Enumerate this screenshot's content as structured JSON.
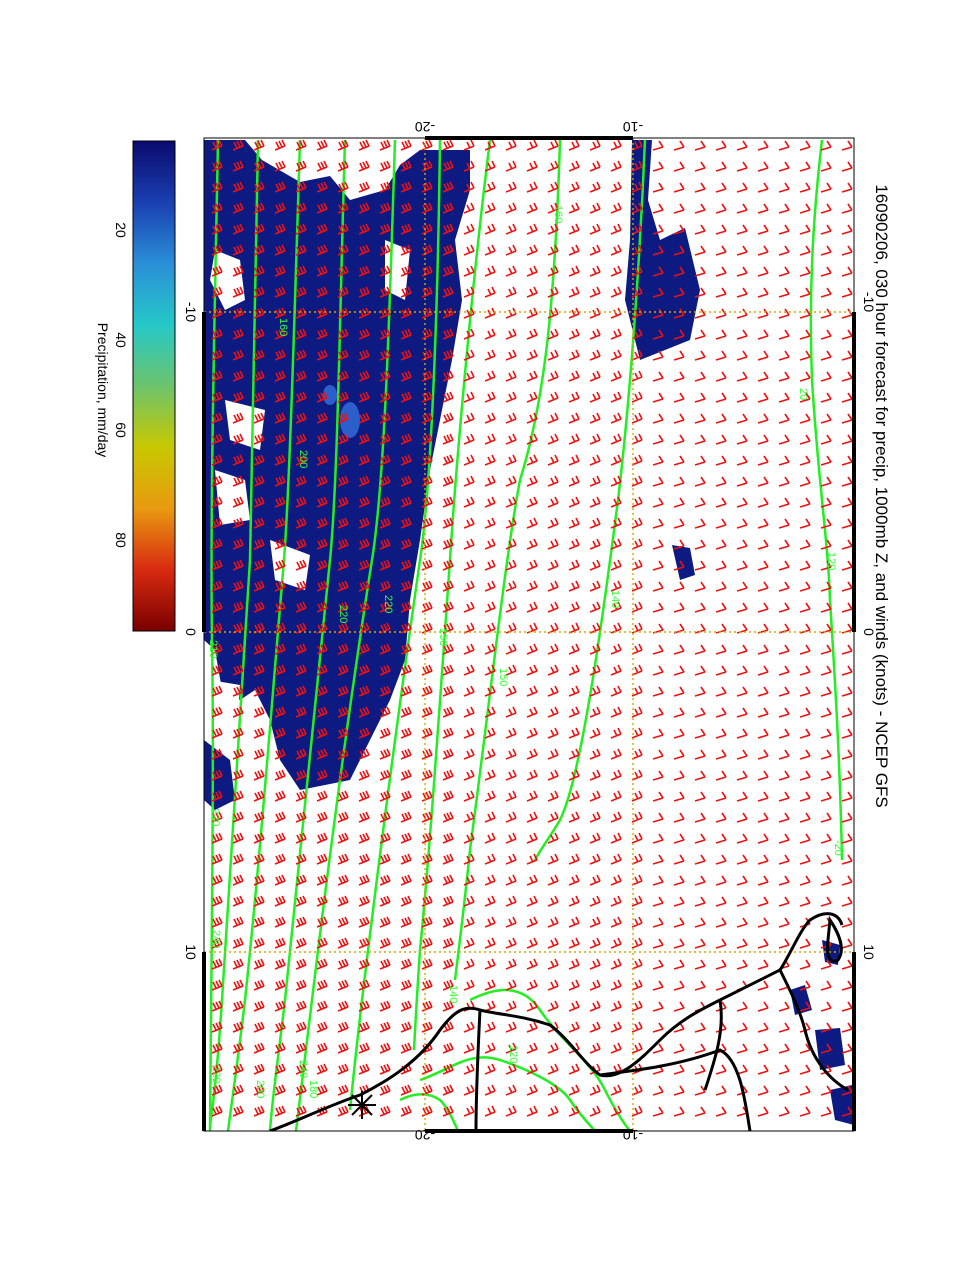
{
  "title": "16090206, 030 hour forecast for precip, 1000mb Z, and winds (knots) - NCEP GFS",
  "colorbar": {
    "label": "Precipitation, mm/day",
    "ticks": [
      "20",
      "40",
      "60",
      "80"
    ],
    "stops": [
      "#0a0a6e",
      "#1a3fb0",
      "#2a8fd8",
      "#25c8c8",
      "#6cc46c",
      "#c8c800",
      "#e89a10",
      "#d82a10",
      "#7a0000"
    ]
  },
  "axes": {
    "top_ticks": [
      "-20",
      "-10"
    ],
    "bottom_ticks": [
      "-20",
      "-10"
    ],
    "left_ticks": [
      "-10",
      "0",
      "10"
    ],
    "right_ticks": [
      "-10",
      "0",
      "10"
    ]
  },
  "contour_labels": [
    "160",
    "160",
    "200",
    "210",
    "220",
    "220",
    "220",
    "150",
    "150",
    "140",
    "140",
    "240",
    "240",
    "220",
    "200",
    "180",
    "20",
    "-20",
    "120",
    "120"
  ],
  "colors": {
    "precip": "#0c1a82",
    "contour": "#22ee22",
    "barb": "#ee1111",
    "grid": "#d4a800",
    "coast": "#000000"
  }
}
